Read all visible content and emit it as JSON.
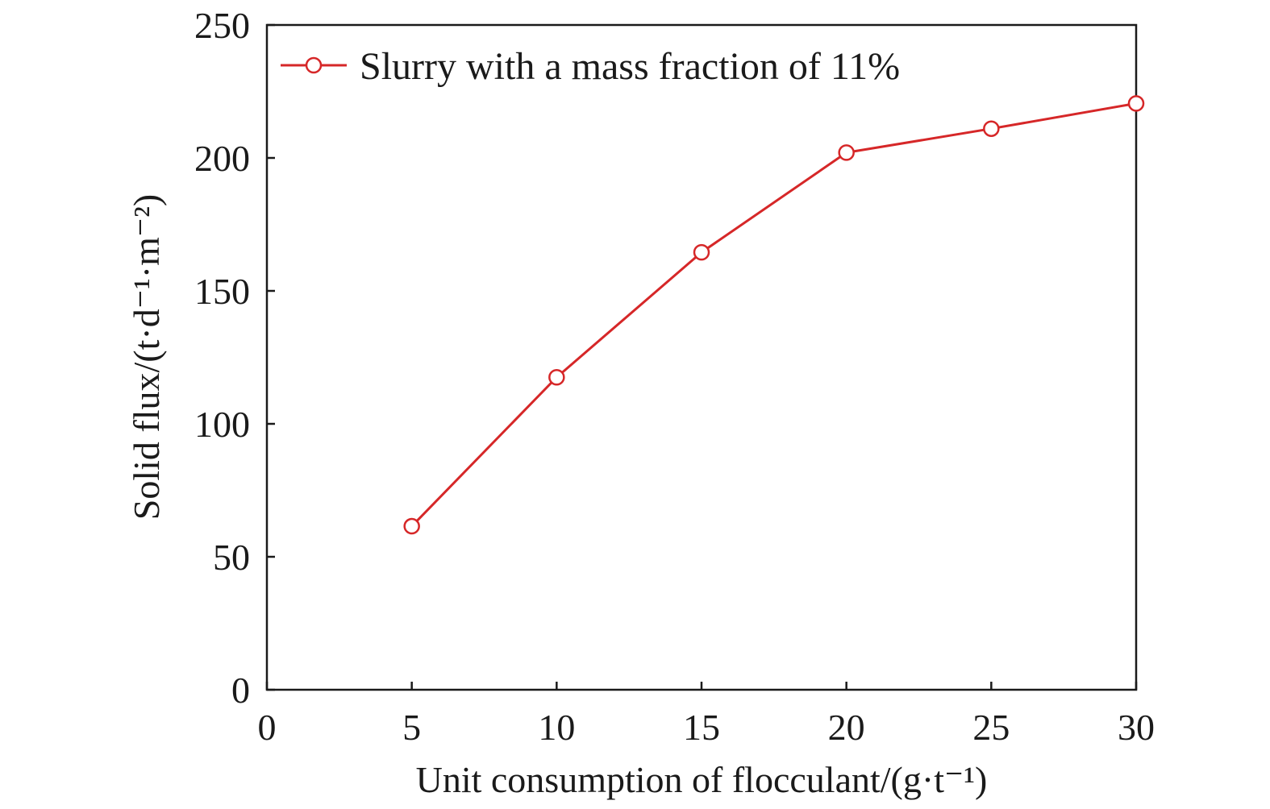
{
  "chart_data": {
    "type": "line",
    "title": "",
    "xlabel": "Unit consumption of flocculant/(g·t⁻¹)",
    "ylabel": "Solid flux/(t·d⁻¹·m⁻²)",
    "xlim": [
      0,
      30
    ],
    "ylim": [
      0,
      250
    ],
    "xticks": [
      0,
      5,
      10,
      15,
      20,
      25,
      30
    ],
    "yticks": [
      0,
      50,
      100,
      150,
      200,
      250
    ],
    "grid": false,
    "legend_position": "top-left",
    "series": [
      {
        "name": "Slurry with a mass fraction of 11%",
        "color": "#d62728",
        "marker": "open-circle",
        "x": [
          5,
          10,
          15,
          20,
          25,
          30
        ],
        "y": [
          61.5,
          117.5,
          164.5,
          202,
          211,
          220.5
        ]
      }
    ]
  }
}
